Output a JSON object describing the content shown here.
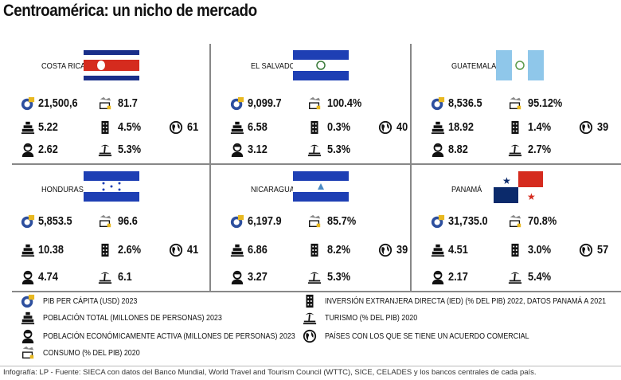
{
  "title": "Centroamérica: un nicho de mercado",
  "colors": {
    "pib_icon": "#2d4f9e",
    "cr_red": "#d52b1e",
    "cr_blue": "#1a2f8a",
    "sv_blue": "#1e3fb4",
    "gt_blue": "#8fc7ea",
    "pa_red": "#d52b1e",
    "pa_blue": "#0b2a6b"
  },
  "countries": [
    {
      "name": "COSTA RICA",
      "flag": "costa-rica",
      "pib": "21,500,6",
      "consumo": "81.7",
      "poblacion": "5.22",
      "ied": "4.5%",
      "acuerdos": "61",
      "pea": "2.62",
      "turismo": "5.3%"
    },
    {
      "name": "EL SALVADOR",
      "flag": "el-salvador",
      "pib": "9,099.7",
      "consumo": "100.4%",
      "poblacion": "6.58",
      "ied": "0.3%",
      "acuerdos": "40",
      "pea": "3.12",
      "turismo": "5.3%"
    },
    {
      "name": "GUATEMALA",
      "flag": "guatemala",
      "pib": "8,536.5",
      "consumo": "95.12%",
      "poblacion": "18.92",
      "ied": "1.4%",
      "acuerdos": "39",
      "pea": "8.82",
      "turismo": "2.7%"
    },
    {
      "name": "HONDURAS",
      "flag": "honduras",
      "pib": "5,853.5",
      "consumo": "96.6",
      "poblacion": "10.38",
      "ied": "2.6%",
      "acuerdos": "41",
      "pea": "4.74",
      "turismo": "6.1"
    },
    {
      "name": "NICARAGUA",
      "flag": "nicaragua",
      "pib": "6,197.9",
      "consumo": "85.7%",
      "poblacion": "6.86",
      "ied": "8.2%",
      "acuerdos": "39",
      "pea": "3.27",
      "turismo": "5.3%"
    },
    {
      "name": "PANAMÁ",
      "flag": "panama",
      "pib": "31,735.0",
      "consumo": "70.8%",
      "poblacion": "4.51",
      "ied": "3.0%",
      "acuerdos": "57",
      "pea": "2.17",
      "turismo": "5.4%"
    }
  ],
  "legend": {
    "pib": "PIB PER CÁPITA (USD) 2023",
    "poblacion": "POBLACIÓN TOTAL (MILLONES DE PERSONAS) 2023",
    "pea": "POBLACIÓN ECONÓMICAMENTE ACTIVA  (MILLONES DE PERSONAS) 2023",
    "consumo": "CONSUMO (% DEL PIB) 2020",
    "ied": "INVERSIÓN EXTRANJERA DIRECTA (IED) (% DEL PIB) 2022, DATOS PANAMÁ A 2021",
    "turismo": "TURISMO (% DEL PIB) 2020",
    "acuerdos": "PAÍSES CON LOS QUE SE TIENE UN ACUERDO COMERCIAL"
  },
  "footer": "Infografía: LP - Fuente: SIECA con datos del Banco Mundial, World Travel and Tourism Council (WTTC), SICE, CELADES y los bancos centrales de cada país."
}
